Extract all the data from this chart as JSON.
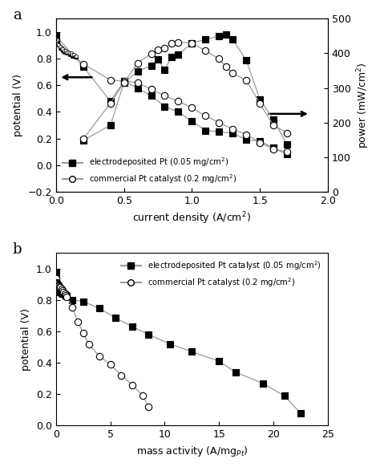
{
  "panel_a": {
    "pol_ed_x": [
      0.0,
      0.2,
      0.4,
      0.5,
      0.6,
      0.7,
      0.8,
      0.9,
      1.0,
      1.1,
      1.2,
      1.3,
      1.4,
      1.5,
      1.6,
      1.7
    ],
    "pol_ed_y": [
      0.97,
      0.74,
      0.48,
      0.63,
      0.58,
      0.52,
      0.44,
      0.4,
      0.33,
      0.26,
      0.25,
      0.24,
      0.19,
      0.18,
      0.13,
      0.08
    ],
    "pol_comm_x": [
      0.0,
      0.2,
      0.4,
      0.5,
      0.6,
      0.7,
      0.8,
      0.9,
      1.0,
      1.1,
      1.2,
      1.3,
      1.4,
      1.5,
      1.6,
      1.7
    ],
    "pol_comm_y": [
      0.935,
      0.76,
      0.64,
      0.63,
      0.62,
      0.57,
      0.52,
      0.48,
      0.43,
      0.37,
      0.32,
      0.27,
      0.23,
      0.17,
      0.12,
      0.1
    ],
    "pow_ed_x": [
      0.2,
      0.4,
      0.5,
      0.6,
      0.7,
      0.75,
      0.8,
      0.85,
      0.9,
      1.0,
      1.1,
      1.2,
      1.25,
      1.3,
      1.4,
      1.5,
      1.6,
      1.7
    ],
    "pow_ed_y": [
      148,
      192,
      315,
      348,
      364,
      383,
      352,
      390,
      396,
      430,
      440,
      450,
      455,
      440,
      380,
      267,
      208,
      136
    ],
    "pow_comm_x": [
      0.2,
      0.4,
      0.5,
      0.6,
      0.7,
      0.75,
      0.8,
      0.85,
      0.9,
      1.0,
      1.1,
      1.2,
      1.25,
      1.3,
      1.4,
      1.5,
      1.6,
      1.7
    ],
    "pow_comm_y": [
      152,
      256,
      315,
      372,
      399,
      411,
      416,
      430,
      432,
      430,
      407,
      384,
      362,
      342,
      322,
      255,
      192,
      170
    ],
    "kin_ed_x": [
      0.0,
      0.01,
      0.02,
      0.03,
      0.04,
      0.05,
      0.06,
      0.07,
      0.08,
      0.09,
      0.1,
      0.11,
      0.12,
      0.13,
      0.14,
      0.15
    ],
    "kin_ed_y": [
      0.97,
      0.92,
      0.9,
      0.88,
      0.87,
      0.86,
      0.85,
      0.85,
      0.84,
      0.84,
      0.83,
      0.83,
      0.82,
      0.82,
      0.81,
      0.81
    ],
    "kin_comm_x": [
      0.0,
      0.01,
      0.02,
      0.03,
      0.04,
      0.05,
      0.06,
      0.07,
      0.08,
      0.09,
      0.1,
      0.11,
      0.12,
      0.13,
      0.14,
      0.15
    ],
    "kin_comm_y": [
      0.935,
      0.91,
      0.9,
      0.89,
      0.88,
      0.87,
      0.86,
      0.86,
      0.85,
      0.85,
      0.84,
      0.84,
      0.83,
      0.83,
      0.82,
      0.82
    ],
    "xlabel": "current density (A/cm$^2$)",
    "ylabel_left": "potential (V)",
    "ylabel_right": "power (mW/cm$^2$)",
    "xlim": [
      0.0,
      2.0
    ],
    "ylim_left": [
      -0.2,
      1.1
    ],
    "ylim_right": [
      0,
      500
    ],
    "label": "a"
  },
  "panel_b": {
    "ed_x": [
      0.0,
      0.05,
      0.1,
      0.15,
      0.2,
      0.25,
      0.3,
      0.4,
      0.5,
      0.6,
      0.7,
      0.8,
      0.9,
      1.0,
      1.5,
      2.5,
      4.0,
      5.5,
      7.0,
      8.5,
      10.5,
      12.5,
      15.0,
      16.5,
      19.0,
      21.0,
      22.5
    ],
    "ed_y": [
      0.97,
      0.875,
      0.87,
      0.865,
      0.86,
      0.855,
      0.852,
      0.848,
      0.845,
      0.84,
      0.838,
      0.835,
      0.83,
      0.825,
      0.8,
      0.79,
      0.745,
      0.685,
      0.63,
      0.58,
      0.52,
      0.47,
      0.41,
      0.34,
      0.27,
      0.19,
      0.08
    ],
    "comm_x": [
      0.0,
      0.05,
      0.1,
      0.15,
      0.2,
      0.25,
      0.3,
      0.4,
      0.5,
      0.6,
      0.7,
      0.8,
      0.9,
      1.0,
      1.5,
      2.0,
      2.5,
      3.0,
      4.0,
      5.0,
      6.0,
      7.0,
      8.0,
      8.5
    ],
    "comm_y": [
      0.935,
      0.91,
      0.905,
      0.9,
      0.895,
      0.89,
      0.885,
      0.878,
      0.87,
      0.86,
      0.85,
      0.84,
      0.83,
      0.82,
      0.755,
      0.66,
      0.59,
      0.52,
      0.44,
      0.39,
      0.32,
      0.26,
      0.19,
      0.12
    ],
    "xlabel": "mass activity (A/mg$_{Pt}$)",
    "ylabel": "potential (V)",
    "xlim": [
      0,
      25
    ],
    "ylim": [
      0.0,
      1.1
    ],
    "label": "b"
  },
  "line_color": "#999999",
  "ed_marker": "s",
  "comm_marker": "o",
  "marker_size": 6,
  "marker_facecolor_ed": "#000000",
  "marker_facecolor_comm": "#ffffff",
  "marker_edgecolor": "#000000",
  "legend_a_ed": "electrodeposited Pt (0.05 mg/cm$^2$)",
  "legend_a_comm": "commercial Pt catalyst (0.2 mg/cm$^2$)",
  "legend_b_ed": "electrodeposited Pt catalyst (0.05 mg/cm$^2$)",
  "legend_b_comm": "commercial Pt catalyst (0.2 mg/cm$^2$)"
}
